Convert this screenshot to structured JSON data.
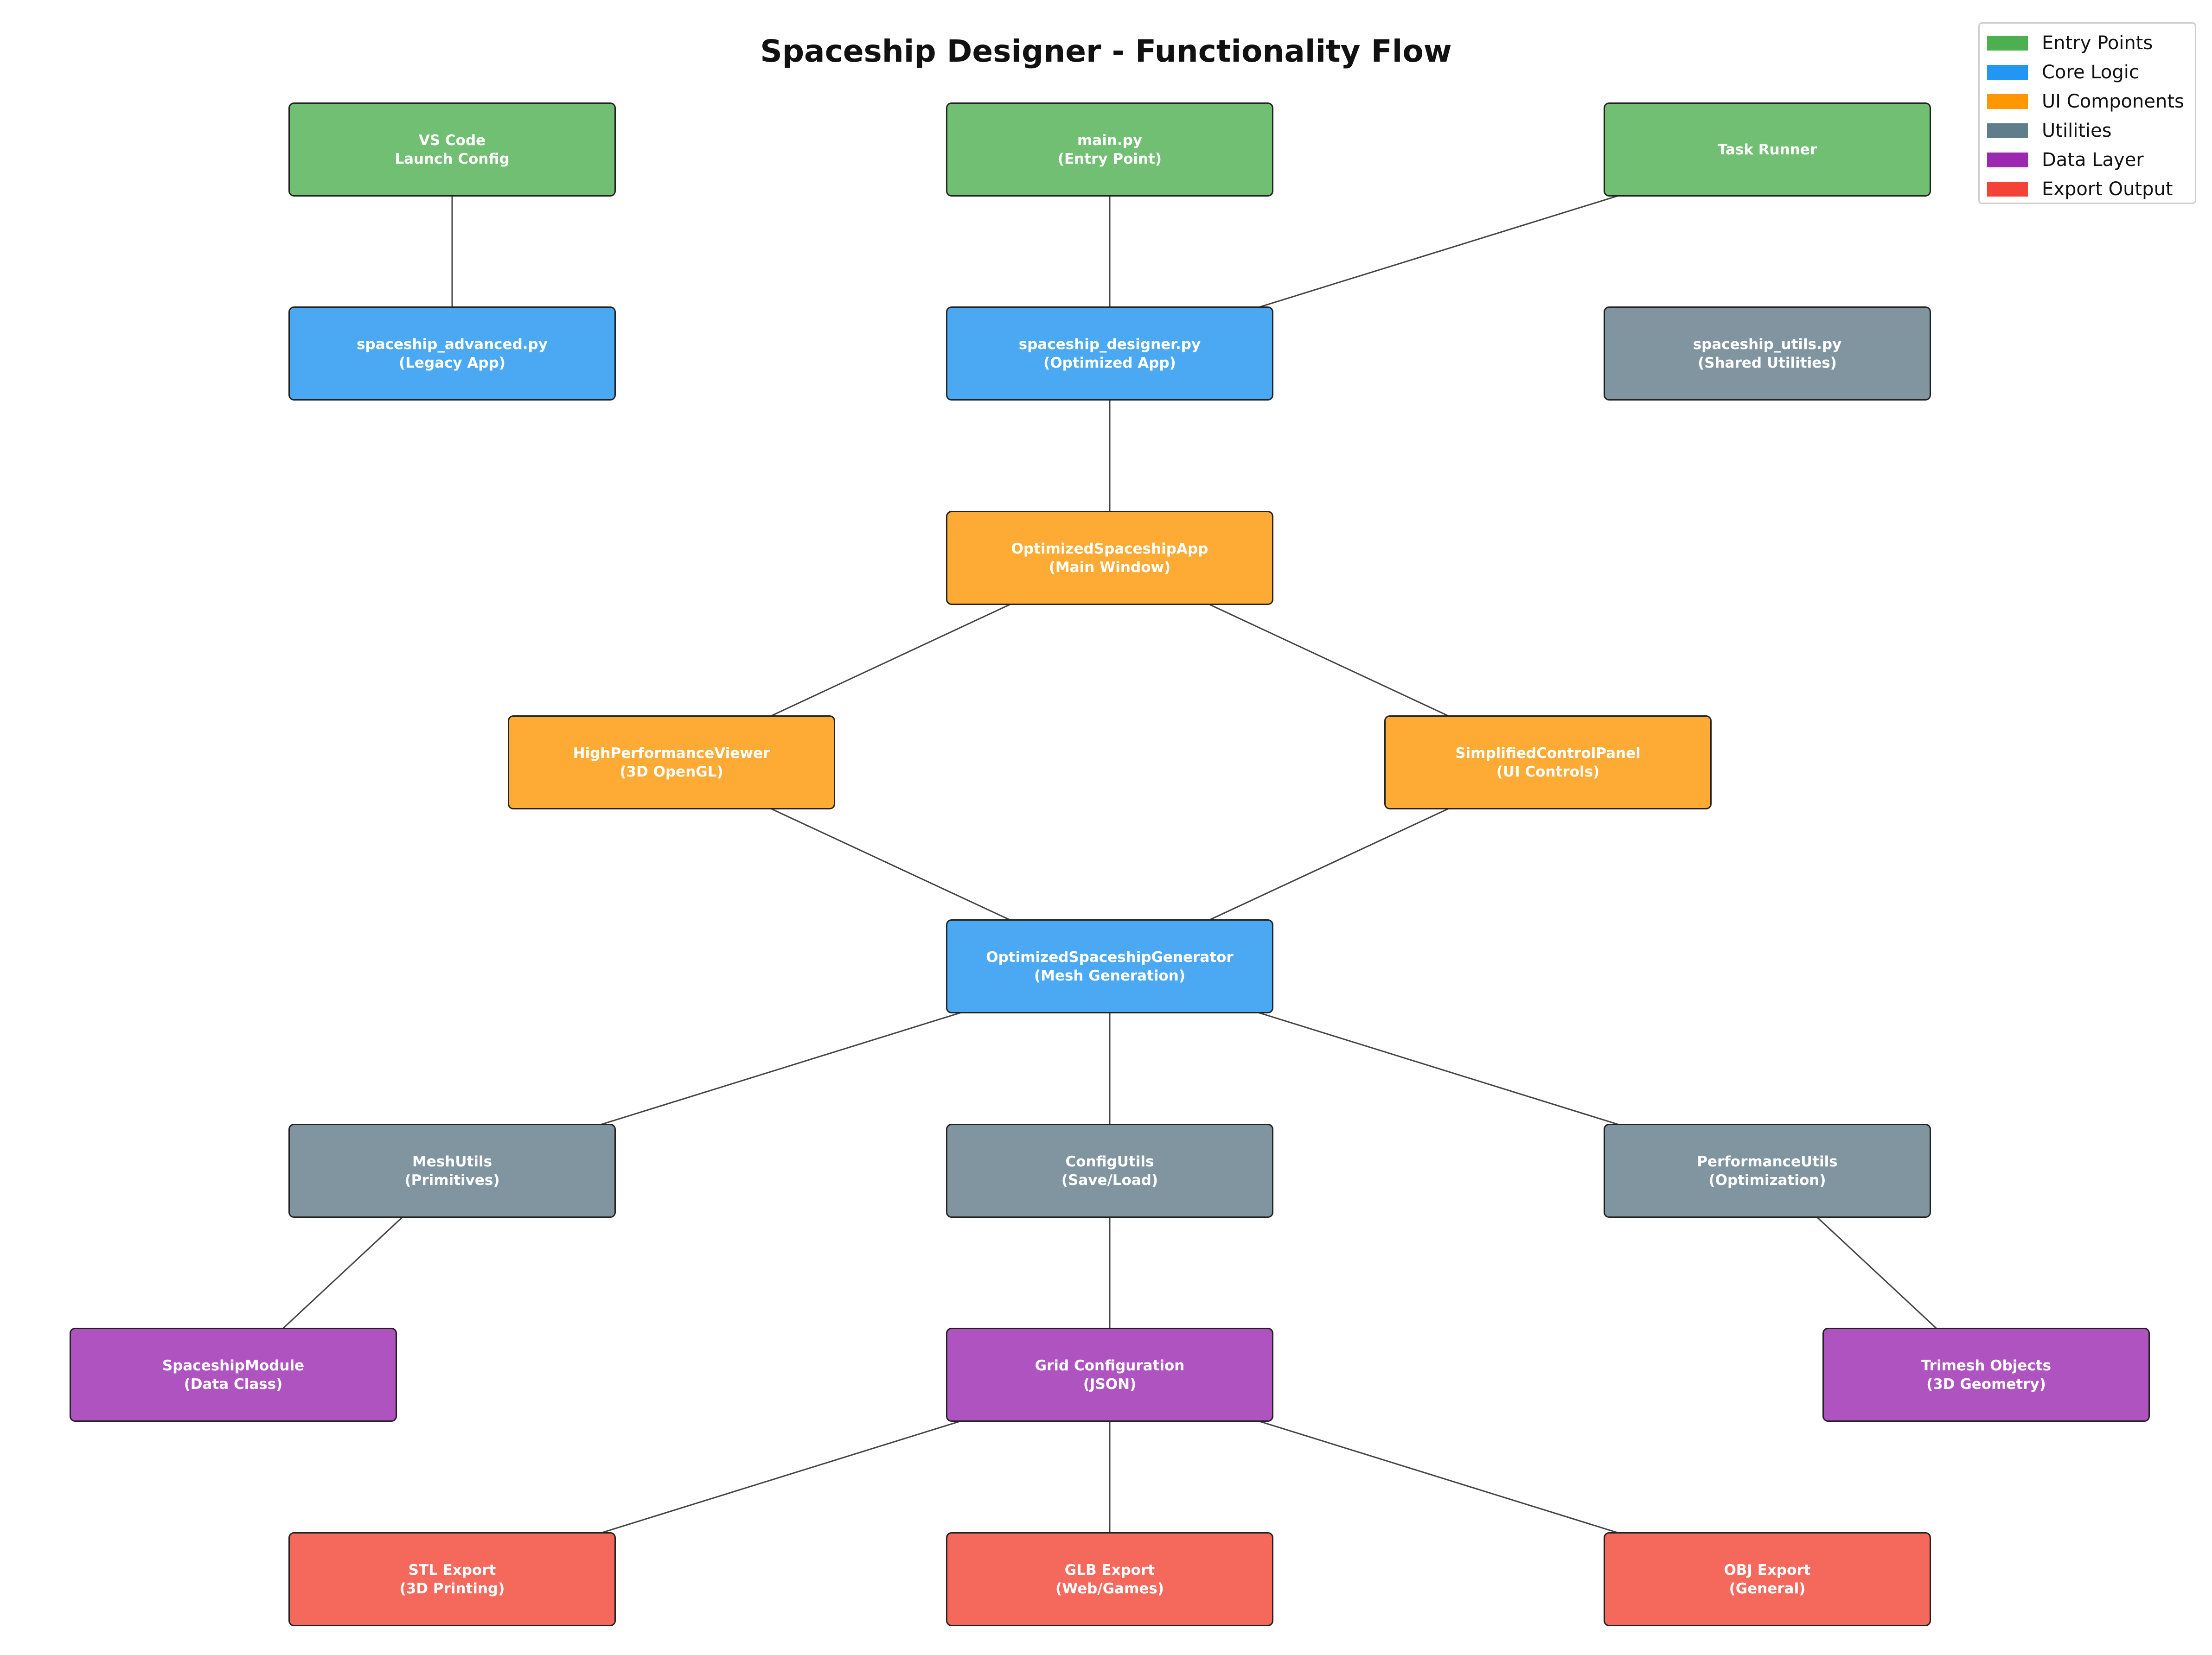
{
  "title": "Spaceship Designer - Functionality Flow",
  "colors": {
    "entry": "#71bf72",
    "core": "#4ba9f4",
    "ui": "#fdab34",
    "util": "#80959f",
    "data": "#ae53c0",
    "export": "#f5685c",
    "edge": "#444444"
  },
  "legend": [
    {
      "label": "Entry Points",
      "color": "#4caf50"
    },
    {
      "label": "Core Logic",
      "color": "#2196f3"
    },
    {
      "label": "UI Components",
      "color": "#ff9800"
    },
    {
      "label": "Utilities",
      "color": "#607d8b"
    },
    {
      "label": "Data Layer",
      "color": "#9c27b0"
    },
    {
      "label": "Export Output",
      "color": "#f44336"
    }
  ],
  "nodes": {
    "vscode": {
      "text": "VS Code\nLaunch Config",
      "category": "entry"
    },
    "main": {
      "text": "main.py\n(Entry Point)",
      "category": "entry"
    },
    "task": {
      "text": "Task Runner",
      "category": "entry"
    },
    "advanced": {
      "text": "spaceship_advanced.py\n(Legacy App)",
      "category": "core"
    },
    "designer": {
      "text": "spaceship_designer.py\n(Optimized App)",
      "category": "core"
    },
    "utils": {
      "text": "spaceship_utils.py\n(Shared Utilities)",
      "category": "util"
    },
    "app": {
      "text": "OptimizedSpaceshipApp\n(Main Window)",
      "category": "ui"
    },
    "viewer": {
      "text": "HighPerformanceViewer\n(3D OpenGL)",
      "category": "ui"
    },
    "panel": {
      "text": "SimplifiedControlPanel\n(UI Controls)",
      "category": "ui"
    },
    "generator": {
      "text": "OptimizedSpaceshipGenerator\n(Mesh Generation)",
      "category": "core"
    },
    "meshutils": {
      "text": "MeshUtils\n(Primitives)",
      "category": "util"
    },
    "configutils": {
      "text": "ConfigUtils\n(Save/Load)",
      "category": "util"
    },
    "perfutils": {
      "text": "PerformanceUtils\n(Optimization)",
      "category": "util"
    },
    "module": {
      "text": "SpaceshipModule\n(Data Class)",
      "category": "data"
    },
    "grid": {
      "text": "Grid Configuration\n(JSON)",
      "category": "data"
    },
    "trimesh": {
      "text": "Trimesh Objects\n(3D Geometry)",
      "category": "data"
    },
    "stl": {
      "text": "STL Export\n(3D Printing)",
      "category": "export"
    },
    "glb": {
      "text": "GLB Export\n(Web/Games)",
      "category": "export"
    },
    "obj": {
      "text": "OBJ Export\n(General)",
      "category": "export"
    }
  },
  "edges": [
    [
      "vscode",
      "advanced"
    ],
    [
      "main",
      "designer"
    ],
    [
      "task",
      "designer"
    ],
    [
      "designer",
      "app"
    ],
    [
      "app",
      "viewer"
    ],
    [
      "app",
      "panel"
    ],
    [
      "viewer",
      "generator"
    ],
    [
      "panel",
      "generator"
    ],
    [
      "generator",
      "meshutils"
    ],
    [
      "generator",
      "configutils"
    ],
    [
      "generator",
      "perfutils"
    ],
    [
      "meshutils",
      "module"
    ],
    [
      "configutils",
      "grid"
    ],
    [
      "perfutils",
      "trimesh"
    ],
    [
      "grid",
      "stl"
    ],
    [
      "grid",
      "glb"
    ],
    [
      "grid",
      "obj"
    ]
  ]
}
